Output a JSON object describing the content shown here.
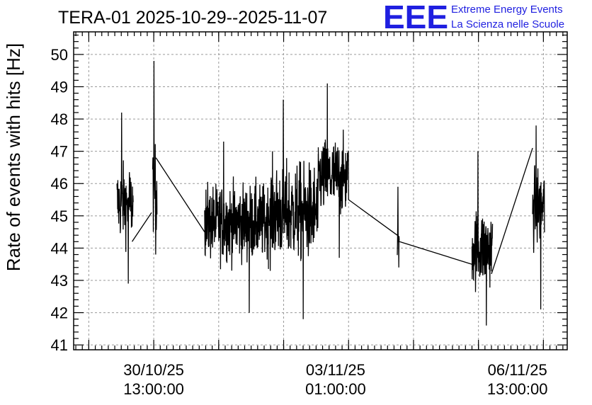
{
  "chart_data": {
    "type": "line",
    "title": "TERA-01 2025-10-29--2025-11-07",
    "xlabel": "",
    "ylabel": "Rate of events with hits [Hz]",
    "ylim": [
      40.85,
      50.7
    ],
    "xlim": [
      "2025-10-29 00:00",
      "2025-11-07 12:00"
    ],
    "yticks": [
      41,
      42,
      43,
      44,
      45,
      46,
      47,
      48,
      49,
      50
    ],
    "xticks": [
      {
        "x": "2025-10-30 13:00",
        "date": "30/10/25",
        "time": "13:00:00"
      },
      {
        "x": "2025-11-03 01:00",
        "date": "03/11/25",
        "time": "01:00:00"
      },
      {
        "x": "2025-11-06 13:00",
        "date": "06/11/25",
        "time": "13:00:00"
      }
    ],
    "grid": true,
    "segments": [
      {
        "start": "2025-10-29 20:00",
        "end": "2025-10-30 03:30",
        "mean": 45.4,
        "min": 42.9,
        "max": 48.2
      },
      {
        "start": "2025-10-30 12:30",
        "end": "2025-10-30 14:30",
        "mean": 45.9,
        "min": 43.8,
        "max": 49.8
      },
      {
        "start": "2025-10-31 12:30",
        "end": "2025-11-01 18:00",
        "mean": 44.8,
        "min": 42.0,
        "max": 47.3
      },
      {
        "start": "2025-11-01 18:00",
        "end": "2025-11-02 17:00",
        "mean": 45.1,
        "min": 41.8,
        "max": 48.6
      },
      {
        "start": "2025-11-02 17:00",
        "end": "2025-11-03 07:00",
        "mean": 46.2,
        "min": 43.7,
        "max": 49.1
      },
      {
        "start": "2025-11-04 05:30",
        "end": "2025-11-04 06:30",
        "mean": 44.3,
        "min": 43.4,
        "max": 45.9
      },
      {
        "start": "2025-11-05 16:00",
        "end": "2025-11-06 01:30",
        "mean": 44.0,
        "min": 41.6,
        "max": 47.0
      },
      {
        "start": "2025-11-06 20:00",
        "end": "2025-11-07 01:30",
        "mean": 45.3,
        "min": 42.1,
        "max": 47.8
      }
    ],
    "connections": [
      {
        "from": [
          "2025-10-30 03:00",
          44.2
        ],
        "to": [
          "2025-10-30 12:00",
          45.1
        ]
      },
      {
        "from": [
          "2025-10-30 14:00",
          46.8
        ],
        "to": [
          "2025-10-31 12:30",
          44.5
        ]
      },
      {
        "from": [
          "2025-11-03 07:00",
          45.5
        ],
        "to": [
          "2025-11-04 05:30",
          44.4
        ]
      },
      {
        "from": [
          "2025-11-04 06:30",
          44.2
        ],
        "to": [
          "2025-11-05 16:00",
          43.5
        ]
      },
      {
        "from": [
          "2025-11-06 01:00",
          43.2
        ],
        "to": [
          "2025-11-06 20:00",
          47.1
        ]
      }
    ]
  },
  "logo": {
    "mark": "EEE",
    "line1": "Extreme Energy Events",
    "line2": "La Scienza nelle Scuole",
    "color": "#1f1fe0"
  }
}
